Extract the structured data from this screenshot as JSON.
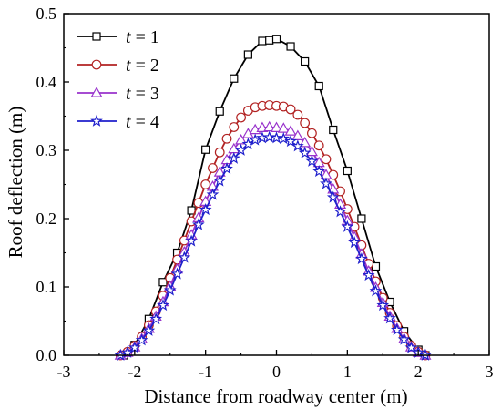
{
  "chart_data": {
    "type": "line",
    "title": "",
    "xlabel": "Distance from roadway center (m)",
    "ylabel": "Roof deflection (m)",
    "xlim": [
      -3,
      3
    ],
    "ylim": [
      0,
      0.5
    ],
    "xticks": [
      "-3",
      "-2",
      "-1",
      "0",
      "1",
      "2",
      "3"
    ],
    "yticks": [
      "0.0",
      "0.1",
      "0.2",
      "0.3",
      "0.4",
      "0.5"
    ],
    "grid": false,
    "legend_position": "top-left",
    "series": [
      {
        "name": "t = 1",
        "legend_var": "t",
        "legend_val": "= 1",
        "color": "#000000",
        "marker": "square",
        "x": [
          -2.15,
          -2.0,
          -1.8,
          -1.6,
          -1.4,
          -1.2,
          -1.0,
          -0.8,
          -0.6,
          -0.4,
          -0.2,
          -0.1,
          0.0,
          0.2,
          0.4,
          0.6,
          0.8,
          1.0,
          1.2,
          1.4,
          1.6,
          1.8,
          2.0,
          2.1
        ],
        "y": [
          0.0,
          0.015,
          0.053,
          0.107,
          0.15,
          0.212,
          0.301,
          0.357,
          0.405,
          0.44,
          0.46,
          0.461,
          0.463,
          0.452,
          0.43,
          0.394,
          0.33,
          0.27,
          0.2,
          0.13,
          0.078,
          0.035,
          0.008,
          0.0
        ]
      },
      {
        "name": "t = 2",
        "legend_var": "t",
        "legend_val": "= 2",
        "color": "#b22222",
        "marker": "circle",
        "x": [
          -2.2,
          -2.1,
          -2.0,
          -1.9,
          -1.8,
          -1.7,
          -1.6,
          -1.5,
          -1.4,
          -1.3,
          -1.2,
          -1.1,
          -1.0,
          -0.9,
          -0.8,
          -0.7,
          -0.6,
          -0.5,
          -0.4,
          -0.3,
          -0.2,
          -0.1,
          0.0,
          0.1,
          0.2,
          0.3,
          0.4,
          0.5,
          0.6,
          0.7,
          0.8,
          0.9,
          1.0,
          1.1,
          1.2,
          1.3,
          1.4,
          1.5,
          1.6,
          1.7,
          1.8,
          1.9,
          2.0,
          2.1
        ],
        "y": [
          0.0,
          0.005,
          0.014,
          0.027,
          0.044,
          0.064,
          0.087,
          0.113,
          0.14,
          0.168,
          0.196,
          0.223,
          0.25,
          0.274,
          0.297,
          0.317,
          0.334,
          0.348,
          0.358,
          0.363,
          0.365,
          0.366,
          0.365,
          0.364,
          0.36,
          0.352,
          0.34,
          0.325,
          0.307,
          0.287,
          0.264,
          0.24,
          0.214,
          0.188,
          0.161,
          0.134,
          0.108,
          0.084,
          0.062,
          0.043,
          0.027,
          0.014,
          0.005,
          0.0
        ]
      },
      {
        "name": "t = 3",
        "legend_var": "t",
        "legend_val": "= 3",
        "color": "#9933cc",
        "marker": "triangle",
        "x": [
          -2.2,
          -2.1,
          -2.0,
          -1.9,
          -1.8,
          -1.7,
          -1.6,
          -1.5,
          -1.4,
          -1.3,
          -1.2,
          -1.1,
          -1.0,
          -0.9,
          -0.8,
          -0.7,
          -0.6,
          -0.5,
          -0.4,
          -0.3,
          -0.2,
          -0.1,
          0.0,
          0.1,
          0.2,
          0.3,
          0.4,
          0.5,
          0.6,
          0.7,
          0.8,
          0.9,
          1.0,
          1.1,
          1.2,
          1.3,
          1.4,
          1.5,
          1.6,
          1.7,
          1.8,
          1.9,
          2.0,
          2.1
        ],
        "y": [
          0.0,
          0.004,
          0.012,
          0.024,
          0.039,
          0.057,
          0.078,
          0.101,
          0.126,
          0.151,
          0.176,
          0.201,
          0.225,
          0.247,
          0.268,
          0.286,
          0.302,
          0.315,
          0.324,
          0.33,
          0.333,
          0.334,
          0.333,
          0.332,
          0.328,
          0.321,
          0.311,
          0.298,
          0.282,
          0.264,
          0.243,
          0.221,
          0.197,
          0.173,
          0.148,
          0.123,
          0.099,
          0.077,
          0.057,
          0.039,
          0.024,
          0.012,
          0.004,
          0.0
        ]
      },
      {
        "name": "t = 4",
        "legend_var": "t",
        "legend_val": "= 4",
        "color": "#1f1fcc",
        "marker": "star",
        "x": [
          -2.2,
          -2.1,
          -2.0,
          -1.9,
          -1.8,
          -1.7,
          -1.6,
          -1.5,
          -1.4,
          -1.3,
          -1.2,
          -1.1,
          -1.0,
          -0.9,
          -0.8,
          -0.7,
          -0.6,
          -0.5,
          -0.4,
          -0.3,
          -0.2,
          -0.1,
          0.0,
          0.1,
          0.2,
          0.3,
          0.4,
          0.5,
          0.6,
          0.7,
          0.8,
          0.9,
          1.0,
          1.1,
          1.2,
          1.3,
          1.4,
          1.5,
          1.6,
          1.7,
          1.8,
          1.9,
          2.0,
          2.1
        ],
        "y": [
          0.0,
          0.004,
          0.011,
          0.022,
          0.036,
          0.053,
          0.073,
          0.095,
          0.119,
          0.143,
          0.167,
          0.191,
          0.213,
          0.235,
          0.255,
          0.273,
          0.288,
          0.3,
          0.309,
          0.315,
          0.318,
          0.319,
          0.318,
          0.317,
          0.313,
          0.306,
          0.296,
          0.284,
          0.269,
          0.251,
          0.231,
          0.21,
          0.188,
          0.165,
          0.141,
          0.117,
          0.094,
          0.073,
          0.054,
          0.037,
          0.023,
          0.011,
          0.004,
          0.0
        ]
      }
    ]
  }
}
